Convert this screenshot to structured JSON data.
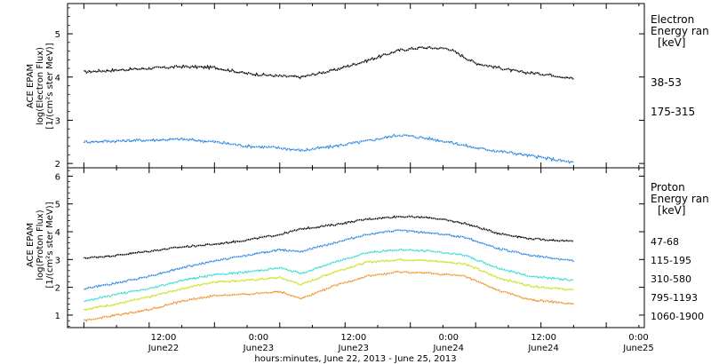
{
  "chart_data": [
    {
      "type": "scatter",
      "panel": "electron",
      "ylabel_lines": [
        "ACE EPAM",
        "log(Electron Flux)",
        "[1/(cm²s ster MeV)]"
      ],
      "ylim": [
        1.9,
        5.7
      ],
      "yticks": [
        2,
        3,
        4,
        5
      ],
      "legend_title": [
        "Electron",
        "Energy ran",
        "[keV]"
      ],
      "x_hours": [
        0,
        6,
        12,
        18,
        24,
        30,
        36,
        42,
        48,
        54,
        60,
        66,
        72,
        76
      ],
      "series": [
        {
          "name": "38-53",
          "color": "#000000",
          "y": [
            4.12,
            4.16,
            4.2,
            4.24,
            4.22,
            4.08,
            4.02,
            4.0,
            4.16,
            4.38,
            4.62,
            4.68,
            4.66,
            4.32,
            4.12,
            4.05,
            3.96
          ],
          "x": [
            0,
            6,
            12,
            18,
            24,
            30,
            36,
            40,
            46,
            52,
            58,
            62,
            67,
            72,
            80,
            86,
            90
          ]
        },
        {
          "name": "175-315",
          "color": "#1E7FE0",
          "y": [
            2.5,
            2.52,
            2.54,
            2.56,
            2.5,
            2.4,
            2.36,
            2.3,
            2.4,
            2.52,
            2.66,
            2.6,
            2.5,
            2.36,
            2.22,
            2.1,
            2.02
          ],
          "x": [
            0,
            6,
            12,
            18,
            24,
            30,
            36,
            40,
            46,
            52,
            58,
            62,
            67,
            72,
            80,
            86,
            90
          ]
        }
      ]
    },
    {
      "type": "scatter",
      "panel": "proton",
      "ylabel_lines": [
        "ACE EPAM",
        "log(Proton Flux)",
        "[1/(cm²s ster MeV)]"
      ],
      "ylim": [
        0.55,
        6.3
      ],
      "yticks": [
        1,
        2,
        3,
        4,
        5,
        6
      ],
      "legend_title": [
        "Proton",
        "Energy ran",
        "[keV]"
      ],
      "xtick_labels": [
        "12:00",
        "0:00",
        "12:00",
        "0:00",
        "12:00",
        "0:00"
      ],
      "xtick_dates": [
        "June22",
        "June23",
        "June23",
        "June24",
        "June24",
        "June25"
      ],
      "xlabel": "hours:minutes, June 22, 2013 - June 25, 2013",
      "series": [
        {
          "name": "47-68",
          "color": "#000000",
          "x": [
            0,
            6,
            12,
            18,
            24,
            30,
            36,
            40,
            46,
            52,
            58,
            64,
            70,
            76,
            82,
            90
          ],
          "y": [
            3.05,
            3.15,
            3.3,
            3.45,
            3.55,
            3.7,
            3.9,
            4.1,
            4.25,
            4.45,
            4.55,
            4.5,
            4.3,
            3.95,
            3.75,
            3.65
          ]
        },
        {
          "name": "115-195",
          "color": "#1E7FE0",
          "x": [
            0,
            6,
            12,
            18,
            24,
            30,
            36,
            40,
            46,
            52,
            58,
            64,
            70,
            76,
            82,
            90
          ],
          "y": [
            1.95,
            2.15,
            2.4,
            2.7,
            2.95,
            3.15,
            3.35,
            3.3,
            3.6,
            3.9,
            4.05,
            3.95,
            3.8,
            3.4,
            3.15,
            2.95
          ]
        },
        {
          "name": "310-580",
          "color": "#22D8C8",
          "x": [
            0,
            6,
            12,
            18,
            24,
            30,
            36,
            40,
            46,
            52,
            58,
            64,
            70,
            76,
            82,
            90
          ],
          "y": [
            1.5,
            1.75,
            1.95,
            2.25,
            2.45,
            2.55,
            2.7,
            2.5,
            2.9,
            3.25,
            3.35,
            3.3,
            3.15,
            2.7,
            2.4,
            2.25
          ]
        },
        {
          "name": "795-1193",
          "color": "#C8DC00",
          "x": [
            0,
            6,
            12,
            18,
            24,
            30,
            36,
            40,
            46,
            52,
            58,
            64,
            70,
            76,
            82,
            90
          ],
          "y": [
            1.2,
            1.4,
            1.65,
            1.95,
            2.2,
            2.25,
            2.35,
            2.1,
            2.55,
            2.9,
            3.0,
            2.95,
            2.85,
            2.35,
            2.05,
            1.9
          ]
        },
        {
          "name": "1060-1900",
          "color": "#F08A1A",
          "x": [
            0,
            6,
            12,
            18,
            24,
            30,
            36,
            40,
            46,
            52,
            58,
            64,
            70,
            76,
            82,
            90
          ],
          "y": [
            0.8,
            1.0,
            1.2,
            1.5,
            1.7,
            1.75,
            1.85,
            1.6,
            2.05,
            2.4,
            2.55,
            2.5,
            2.4,
            1.9,
            1.55,
            1.4
          ]
        }
      ]
    }
  ]
}
